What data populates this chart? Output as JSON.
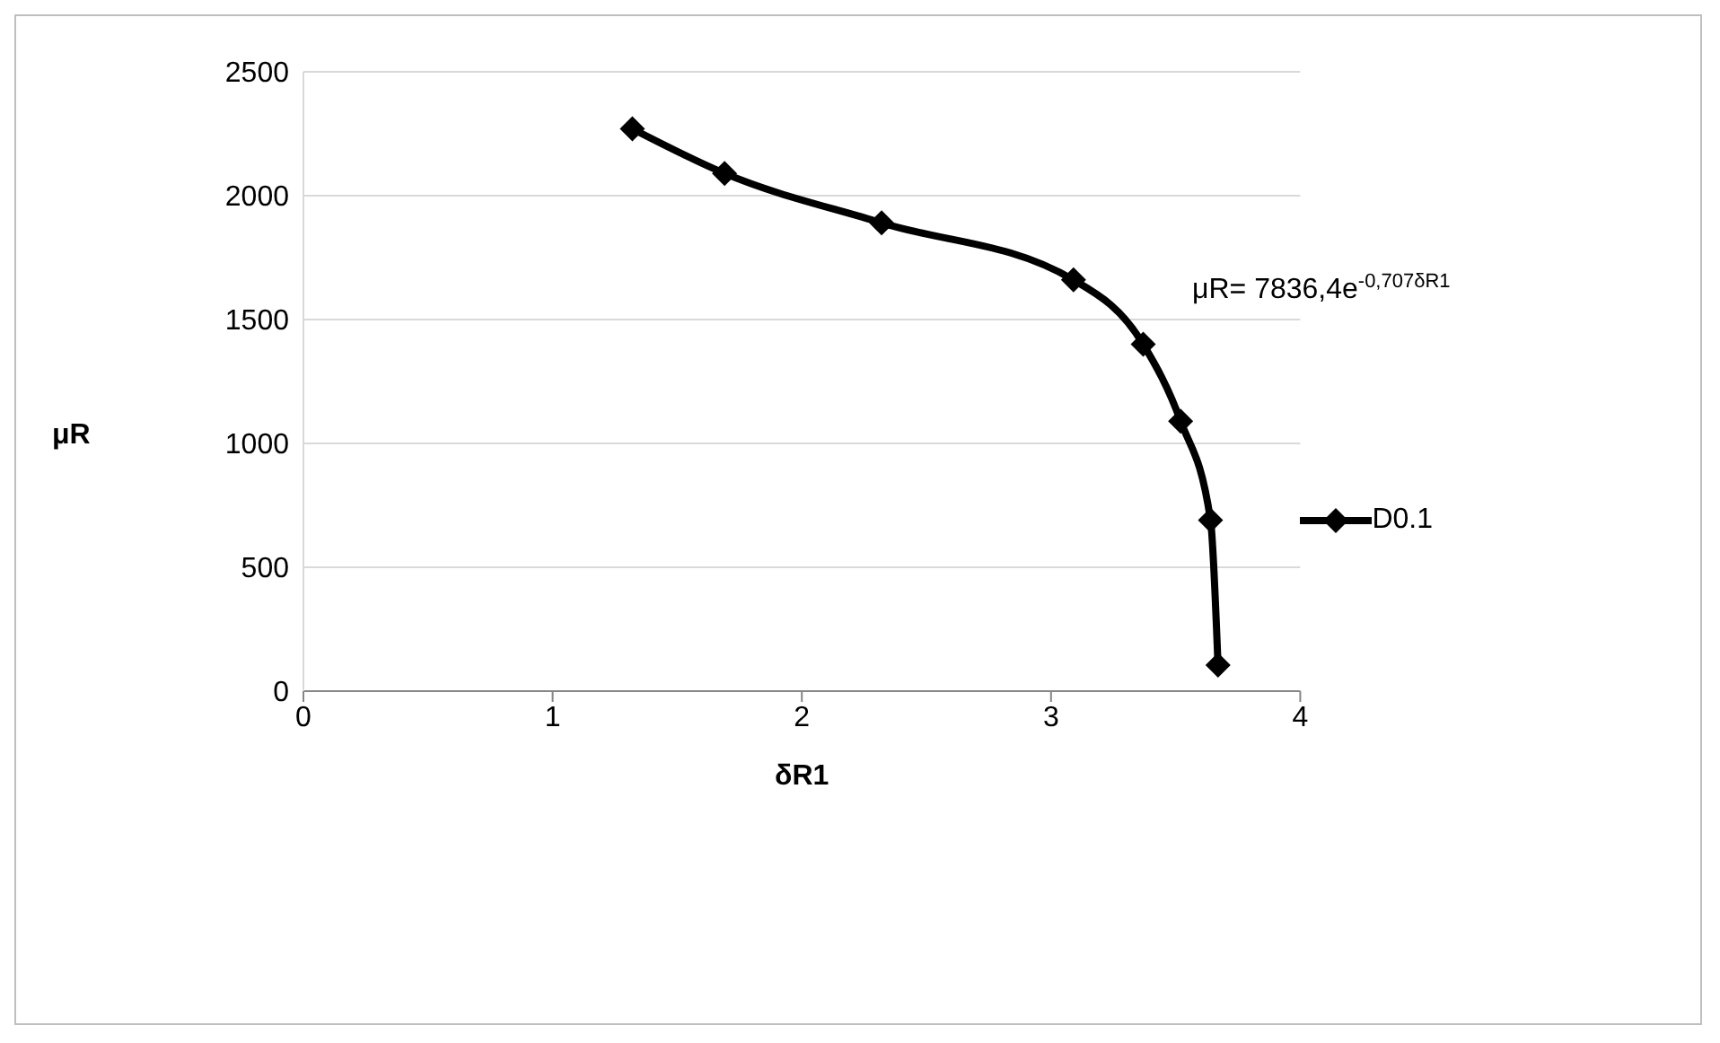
{
  "chart_data": {
    "type": "line",
    "xlabel": "δR1",
    "ylabel": "μR",
    "x": [
      1.32,
      1.69,
      2.32,
      3.09,
      3.37,
      3.52,
      3.64,
      3.67
    ],
    "series": [
      {
        "name": "D0.1",
        "color": "#000000",
        "values": [
          2270,
          2090,
          1890,
          1660,
          1400,
          1090,
          690,
          105
        ]
      }
    ],
    "xlim": [
      0,
      4
    ],
    "xticks": [
      0,
      1,
      2,
      3,
      4
    ],
    "ylim": [
      0,
      2500
    ],
    "yticks": [
      0,
      500,
      1000,
      1500,
      2000,
      2500
    ],
    "grid": "y",
    "legend": "right",
    "marker": "diamond",
    "line_style": "solid",
    "annotations": [
      "μR= 7836,4e$^{-0,707δR1}$"
    ]
  }
}
